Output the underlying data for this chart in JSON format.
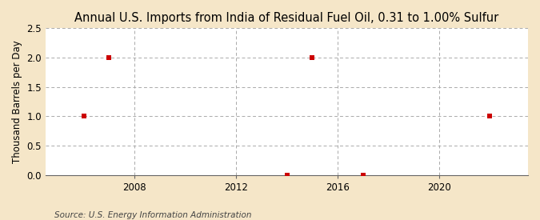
{
  "title": "Annual U.S. Imports from India of Residual Fuel Oil, 0.31 to 1.00% Sulfur",
  "ylabel": "Thousand Barrels per Day",
  "source": "Source: U.S. Energy Information Administration",
  "figure_bg_color": "#f5e6c8",
  "plot_bg_color": "#ffffff",
  "data_x": [
    2006,
    2007,
    2014,
    2015,
    2017,
    2022
  ],
  "data_y": [
    1.0,
    2.0,
    0.0,
    2.0,
    0.0,
    1.0
  ],
  "marker_color": "#cc0000",
  "marker_size": 4,
  "xlim": [
    2004.5,
    2023.5
  ],
  "ylim": [
    0.0,
    2.5
  ],
  "yticks": [
    0.0,
    0.5,
    1.0,
    1.5,
    2.0,
    2.5
  ],
  "xticks": [
    2008,
    2012,
    2016,
    2020
  ],
  "grid_color": "#aaaaaa",
  "title_fontsize": 10.5,
  "axis_fontsize": 8.5,
  "source_fontsize": 7.5
}
